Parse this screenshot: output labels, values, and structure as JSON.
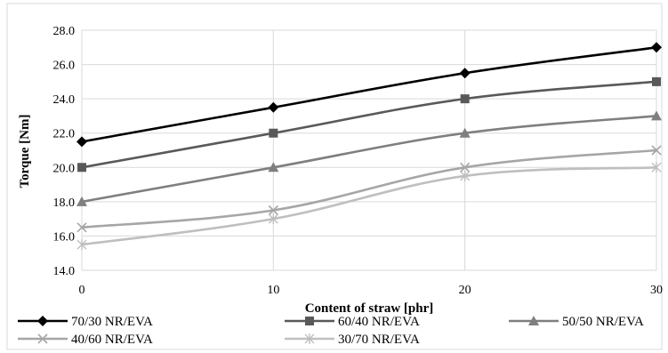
{
  "chart_data": {
    "type": "line",
    "title": "",
    "xlabel": "Content of straw [phr]",
    "ylabel": "Torque [Nm]",
    "x": [
      0,
      10,
      20,
      30
    ],
    "xticks": [
      "0",
      "10",
      "20",
      "30"
    ],
    "xlim": [
      0,
      30
    ],
    "ylim": [
      14.0,
      28.0
    ],
    "yticks": [
      "14.0",
      "16.0",
      "18.0",
      "20.0",
      "22.0",
      "24.0",
      "26.0",
      "28.0"
    ],
    "grid": true,
    "legend_position": "bottom",
    "series": [
      {
        "name": "70/30 NR/EVA",
        "values": [
          21.5,
          23.5,
          25.5,
          27.0
        ],
        "color": "#000000",
        "marker": "diamond"
      },
      {
        "name": "60/40 NR/EVA",
        "values": [
          20.0,
          22.0,
          24.0,
          25.0
        ],
        "color": "#595959",
        "marker": "square"
      },
      {
        "name": "50/50 NR/EVA",
        "values": [
          18.0,
          20.0,
          22.0,
          23.0
        ],
        "color": "#7f7f7f",
        "marker": "triangle"
      },
      {
        "name": "40/60 NR/EVA",
        "values": [
          16.5,
          17.5,
          20.0,
          21.0
        ],
        "color": "#a6a6a6",
        "marker": "x"
      },
      {
        "name": "30/70 NR/EVA",
        "values": [
          15.5,
          17.0,
          19.5,
          20.0
        ],
        "color": "#bfbfbf",
        "marker": "star"
      }
    ]
  }
}
